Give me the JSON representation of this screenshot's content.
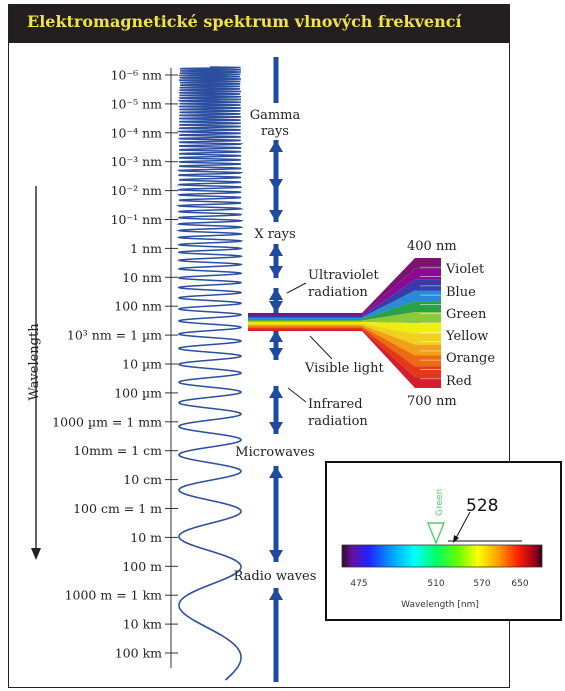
{
  "title": "Elektromagnetické spektrum vlnových frekvencí",
  "wavelength_axis": {
    "label": "Wavelength",
    "ticks": [
      "10⁻⁶ nm",
      "10⁻⁵ nm",
      "10⁻⁴ nm",
      "10⁻³ nm",
      "10⁻² nm",
      "10⁻¹ nm",
      "1 nm",
      "10 nm",
      "100 nm",
      "10³ nm = 1 µm",
      "10 µm",
      "100 µm",
      "1000 µm = 1 mm",
      "10mm = 1 cm",
      "10 cm",
      "100 cm = 1 m",
      "10 m",
      "100 m",
      "1000 m = 1 km",
      "10 km",
      "100 km"
    ]
  },
  "bands": {
    "gamma_line1": "Gamma",
    "gamma_line2": "rays",
    "xrays": "X rays",
    "uv_line1": "Ultraviolet",
    "uv_line2": "radiation",
    "visible": "Visible light",
    "ir_line1": "Infrared",
    "ir_line2": "radiation",
    "microwaves": "Microwaves",
    "radio": "Radio waves"
  },
  "visible_spectrum": {
    "top_label": "400 nm",
    "bottom_label": "700 nm",
    "colors": [
      "Violet",
      "Blue",
      "Green",
      "Yellow",
      "Orange",
      "Red"
    ]
  },
  "inset": {
    "marker_label": "Green",
    "value_label": "528",
    "ticks": [
      "475",
      "510",
      "570",
      "650"
    ],
    "axis_label": "Wavelength [nm]"
  },
  "colors": {
    "title_bg": "#231f20",
    "title_text": "#f2e24a",
    "wave": "#2b4f9e",
    "arrow": "#1f4aa0",
    "marker": "#55cc66"
  }
}
